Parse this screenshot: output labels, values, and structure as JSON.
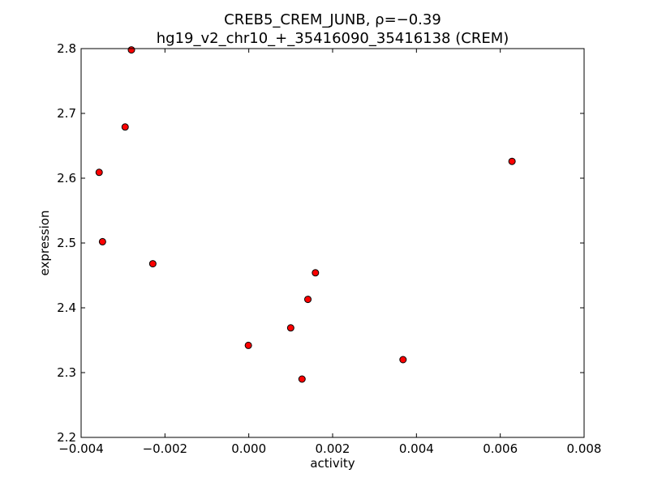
{
  "chart_data": {
    "type": "scatter",
    "title": "CREB5_CREM_JUNB, ρ=−0.39",
    "subtitle": "hg19_v2_chr10_+_35416090_35416138 (CREM)",
    "xlabel": "activity",
    "ylabel": "expression",
    "xlim": [
      -0.004,
      0.008
    ],
    "ylim": [
      2.2,
      2.8
    ],
    "xticks": [
      -0.004,
      -0.002,
      0.0,
      0.002,
      0.004,
      0.006,
      0.008
    ],
    "xtick_labels": [
      "−0.004",
      "−0.002",
      "0.000",
      "0.002",
      "0.004",
      "0.006",
      "0.008"
    ],
    "yticks": [
      2.2,
      2.3,
      2.4,
      2.5,
      2.6,
      2.7,
      2.8
    ],
    "ytick_labels": [
      "2.2",
      "2.3",
      "2.4",
      "2.5",
      "2.6",
      "2.7",
      "2.8"
    ],
    "grid": false,
    "marker_color": "#ff0000",
    "marker_edge_color": "#000000",
    "points": [
      {
        "x": -0.00357,
        "y": 2.609
      },
      {
        "x": -0.00349,
        "y": 2.502
      },
      {
        "x": -0.00295,
        "y": 2.679
      },
      {
        "x": -0.0028,
        "y": 2.798
      },
      {
        "x": -0.00229,
        "y": 2.468
      },
      {
        "x": -1e-05,
        "y": 2.342
      },
      {
        "x": 0.001,
        "y": 2.369
      },
      {
        "x": 0.00127,
        "y": 2.29
      },
      {
        "x": 0.00141,
        "y": 2.413
      },
      {
        "x": 0.00159,
        "y": 2.454
      },
      {
        "x": 0.00368,
        "y": 2.32
      },
      {
        "x": 0.00628,
        "y": 2.626
      }
    ]
  }
}
